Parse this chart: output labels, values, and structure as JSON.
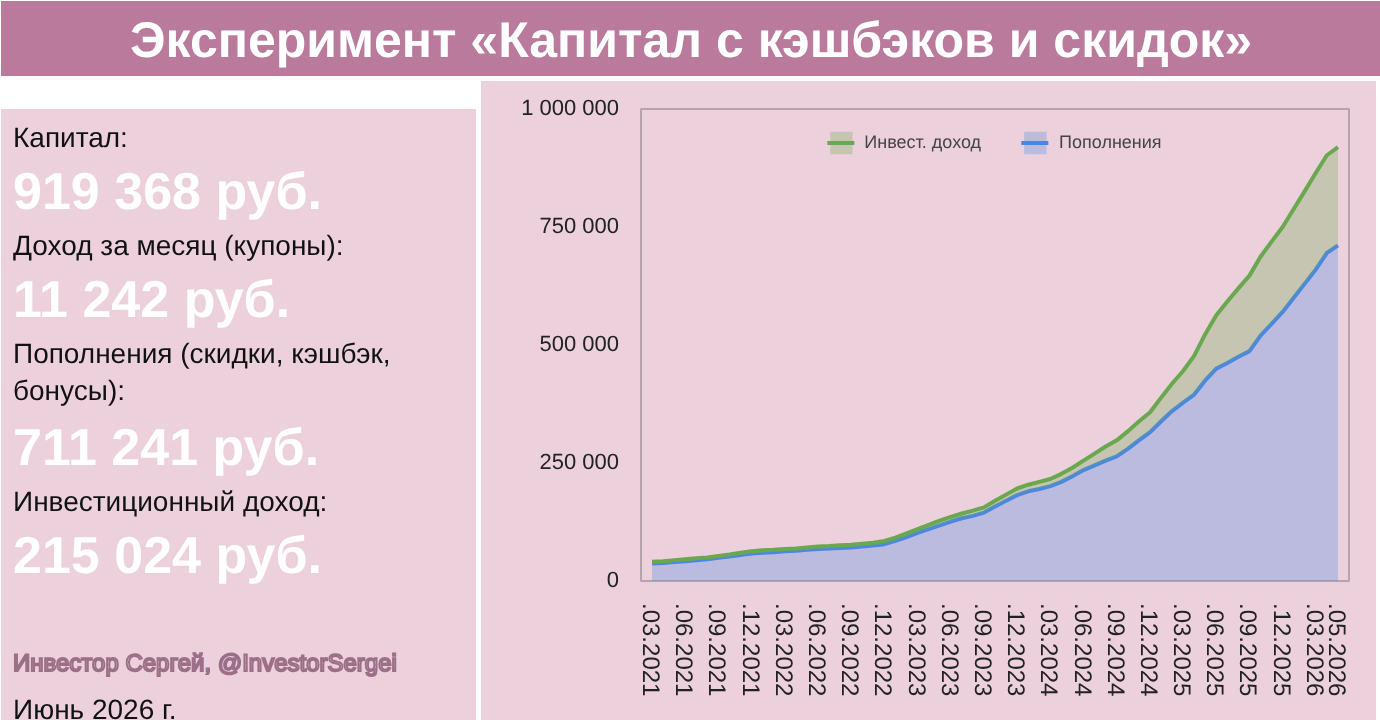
{
  "chart_data": [
    {
      "type": "other",
      "title": "Эксперимент «Капитал с кэшбэков и скидок»",
      "annotations": [
        "Капитал:",
        "919 368 руб.",
        "Доход за месяц (купоны):",
        "11 242 руб.",
        "Пополнения (скидки, кэшбэк, бонусы):",
        "711 241 руб.",
        "Инвестиционный доход:",
        "215 024 руб.",
        "Инвестор Сергей, @InvestorSergei",
        "Июнь 2026 г."
      ]
    },
    {
      "type": "area",
      "stacked": true,
      "legend": "top",
      "categories": [
        ".03.2021",
        null,
        null,
        ".06.2021",
        null,
        null,
        ".09.2021",
        null,
        null,
        ".12.2021",
        null,
        null,
        ".03.2022",
        null,
        null,
        ".06.2022",
        null,
        null,
        ".09.2022",
        null,
        null,
        ".12.2022",
        null,
        null,
        ".03.2023",
        null,
        null,
        ".06.2023",
        null,
        null,
        ".09.2023",
        null,
        null,
        ".12.2023",
        null,
        null,
        ".03.2024",
        null,
        null,
        ".06.2024",
        null,
        null,
        ".09.2024",
        null,
        null,
        ".12.2024",
        null,
        null,
        ".03.2025",
        null,
        null,
        ".06.2025",
        null,
        null,
        ".09.2025",
        null,
        null,
        ".12.2025",
        null,
        null,
        ".03.2026",
        null,
        ".05.2026"
      ],
      "ylim": [
        0,
        1000000
      ],
      "yticks": [
        0,
        {
          "value": 250000,
          "label": "250 000"
        },
        {
          "value": 500000,
          "label": "500 000"
        },
        {
          "value": 750000,
          "label": "750 000"
        },
        {
          "value": 1000000,
          "label": "1 000 000"
        }
      ],
      "series": [
        {
          "name": "Пополнения",
          "color": "#4a86e8",
          "values": [
            37000,
            38000,
            40000,
            42000,
            44000,
            46000,
            49000,
            52000,
            55000,
            58000,
            60000,
            61000,
            63000,
            64000,
            66000,
            68000,
            69000,
            70000,
            71000,
            73000,
            75000,
            78000,
            85000,
            93000,
            102000,
            110000,
            118000,
            126000,
            133000,
            138000,
            145000,
            158000,
            170000,
            182000,
            190000,
            195000,
            201000,
            210000,
            222000,
            235000,
            245000,
            255000,
            264000,
            280000,
            298000,
            315000,
            338000,
            360000,
            378000,
            395000,
            425000,
            450000,
            462000,
            475000,
            487000,
            520000,
            545000,
            570000,
            600000,
            630000,
            660000,
            695000,
            711000
          ]
        },
        {
          "name": "Инвест. доход",
          "color": "#6aa84f",
          "values": [
            4000,
            4000,
            4000,
            4000,
            4000,
            4000,
            4000,
            4000,
            5000,
            5000,
            5000,
            5000,
            5000,
            5000,
            5000,
            5000,
            5000,
            6000,
            6000,
            6000,
            6000,
            7000,
            7000,
            8000,
            8000,
            9000,
            10000,
            10000,
            10000,
            11000,
            11000,
            12000,
            13000,
            14000,
            14000,
            15000,
            15000,
            17000,
            18000,
            20000,
            25000,
            30000,
            34000,
            37000,
            40000,
            42000,
            50000,
            58000,
            67000,
            82000,
            98000,
            113000,
            130000,
            145000,
            160000,
            167000,
            174000,
            180000,
            188000,
            196000,
            205000,
            207000,
            208000
          ]
        }
      ]
    }
  ]
}
